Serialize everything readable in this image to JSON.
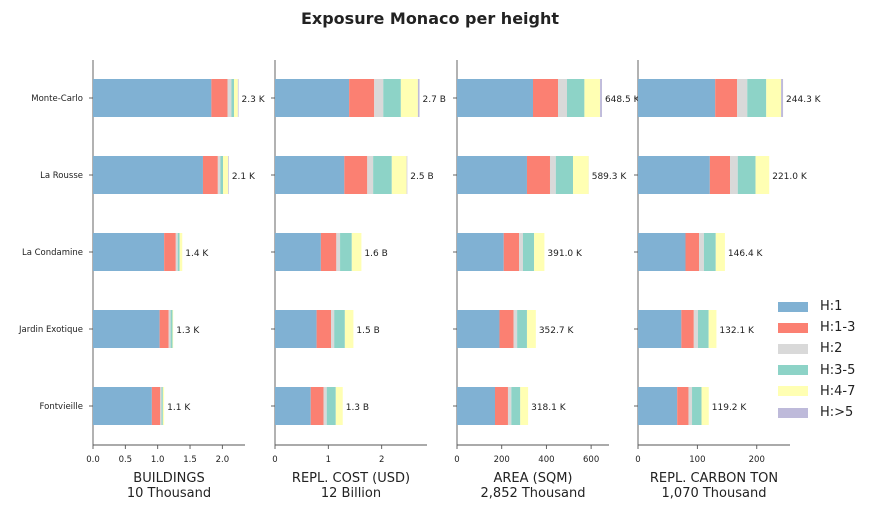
{
  "chart_data": {
    "type": "bar",
    "orientation": "horizontal",
    "stacked": true,
    "title": "Exposure Monaco per height",
    "categories": [
      "Monte-Carlo",
      "La Rousse",
      "La Condamine",
      "Jardin Exotique",
      "Fontvieille"
    ],
    "series_names": [
      "H:1",
      "H:1-3",
      "H:2",
      "H:3-5",
      "H:4-7",
      "H:>5"
    ],
    "series_colors": [
      "#80b1d3",
      "#fb8072",
      "#d9d9d9",
      "#8dd3c7",
      "#ffffb3",
      "#bebada"
    ],
    "panels": [
      {
        "xlabel": "BUILDINGS",
        "xsublabel": "10 Thousand",
        "xlim": [
          0,
          2.35
        ],
        "ticks": [
          0,
          0.5,
          1,
          1.5,
          2
        ],
        "tick_labels": [
          "0.0",
          "0.5",
          "1.0",
          "1.5",
          "2.0"
        ],
        "totals": [
          "2.3 K",
          "2.1 K",
          "1.4 K",
          "1.3 K",
          "1.1 K"
        ],
        "values": [
          [
            1.83,
            0.25,
            0.06,
            0.04,
            0.06,
            0.01
          ],
          [
            1.7,
            0.23,
            0.04,
            0.04,
            0.08,
            0.01
          ],
          [
            1.1,
            0.18,
            0.03,
            0.03,
            0.04,
            0.0
          ],
          [
            1.03,
            0.14,
            0.03,
            0.03,
            0.01,
            0.0
          ],
          [
            0.91,
            0.13,
            0.02,
            0.02,
            0.02,
            0.0
          ]
        ]
      },
      {
        "xlabel": "REPL. COST (USD)",
        "xsublabel": "12 Billion",
        "xlim": [
          0,
          2.85
        ],
        "ticks": [
          0,
          1,
          2
        ],
        "tick_labels": [
          "0",
          "1",
          "2"
        ],
        "totals": [
          "2.7 B",
          "2.5 B",
          "1.6 B",
          "1.5 B",
          "1.3 B"
        ],
        "values": [
          [
            1.39,
            0.47,
            0.17,
            0.33,
            0.32,
            0.03
          ],
          [
            1.3,
            0.43,
            0.11,
            0.35,
            0.28,
            0.01
          ],
          [
            0.86,
            0.29,
            0.07,
            0.22,
            0.18,
            0.0
          ],
          [
            0.78,
            0.27,
            0.06,
            0.2,
            0.16,
            0.0
          ],
          [
            0.67,
            0.24,
            0.06,
            0.17,
            0.13,
            0.0
          ]
        ]
      },
      {
        "xlabel": "AREA (SQM)",
        "xsublabel": "2,852 Thousand",
        "xlim": [
          0,
          680
        ],
        "ticks": [
          0,
          200,
          400,
          600
        ],
        "tick_labels": [
          "0",
          "200",
          "400",
          "600"
        ],
        "totals": [
          "648.5 K",
          "589.3 K",
          "391.0 K",
          "352.7 K",
          "318.1 K"
        ],
        "values": [
          [
            340,
            112,
            40,
            78,
            70,
            8.5
          ],
          [
            313,
            103,
            26,
            77,
            70,
            0.3
          ],
          [
            209,
            69,
            17,
            50,
            46,
            0.0
          ],
          [
            190,
            63,
            16,
            44,
            39.7,
            0.0
          ],
          [
            170,
            58,
            15,
            40,
            35.1,
            0.0
          ]
        ]
      },
      {
        "xlabel": "REPL. CARBON TON",
        "xsublabel": "1,070 Thousand",
        "xlim": [
          0,
          256
        ],
        "ticks": [
          0,
          100,
          200
        ],
        "tick_labels": [
          "0",
          "100",
          "200"
        ],
        "totals": [
          "244.3 K",
          "221.0 K",
          "146.4 K",
          "132.1 K",
          "119.2 K"
        ],
        "values": [
          [
            130,
            37,
            17,
            32,
            25,
            3.3
          ],
          [
            121,
            34,
            13,
            30,
            23,
            0.0
          ],
          [
            80,
            23,
            8,
            20,
            15.4,
            0.0
          ],
          [
            73,
            21,
            7,
            18,
            13.1,
            0.0
          ],
          [
            66,
            19,
            6,
            16,
            12.2,
            0.0
          ]
        ]
      }
    ]
  }
}
